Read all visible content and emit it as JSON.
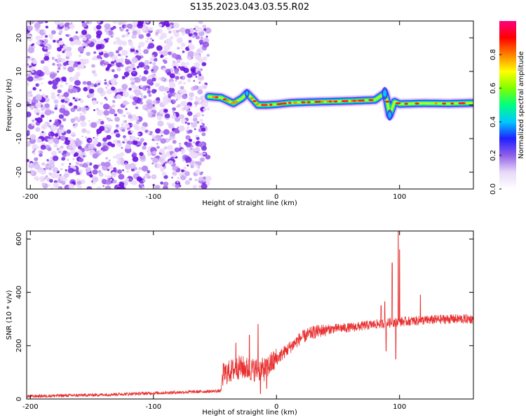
{
  "figure": {
    "title": "S135.2023.043.03.55.R02"
  },
  "chart_data": [
    {
      "type": "heatmap",
      "xlabel": "Height of straight line (km)",
      "ylabel": "Frequency (Hz)",
      "xlim": [
        -203,
        160
      ],
      "ylim": [
        -25,
        25
      ],
      "xticks": [
        -200,
        -100,
        0,
        100
      ],
      "yticks": [
        -20,
        -10,
        0,
        10,
        20
      ],
      "grid": false,
      "noise_region_x": [
        -203,
        -55
      ],
      "ridge": {
        "x": [
          -55,
          -45,
          -35,
          -28,
          -24,
          -20,
          -15,
          -8,
          0,
          10,
          20,
          40,
          60,
          80,
          88,
          90,
          92,
          96,
          100,
          120,
          140,
          160
        ],
        "freq": [
          2.5,
          2.2,
          0.5,
          2.0,
          3.5,
          2.0,
          0.0,
          0.0,
          0.2,
          0.6,
          0.8,
          1.0,
          1.2,
          1.5,
          3.5,
          1.0,
          -3.0,
          1.0,
          0.3,
          0.5,
          0.4,
          0.6
        ]
      },
      "colorbar": {
        "label": "Normalized spectral amplitude",
        "range": [
          0,
          1
        ],
        "ticks": [
          "0.0",
          "0.2",
          "0.4",
          "0.6",
          "0.8"
        ],
        "colors": [
          "#ffffff",
          "#e8d8f8",
          "#9060e8",
          "#2020ff",
          "#00c8ff",
          "#00ff80",
          "#80ff00",
          "#ffff00",
          "#ff8000",
          "#ff0000",
          "#ff0080"
        ]
      }
    },
    {
      "type": "line",
      "xlabel": "Height of straight line (km)",
      "ylabel": "SNR (10 * v/v)",
      "xlim": [
        -203,
        160
      ],
      "ylim": [
        0,
        630
      ],
      "xticks": [
        -200,
        -100,
        0,
        100
      ],
      "yticks": [
        0,
        200,
        400,
        600
      ],
      "grid": false,
      "color": "#e83030",
      "trend": {
        "x": [
          -203,
          -150,
          -100,
          -60,
          -45,
          -44,
          -30,
          -20,
          -10,
          0,
          10,
          20,
          30,
          40,
          50,
          60,
          80,
          100,
          120,
          140,
          160
        ],
        "y": [
          10,
          15,
          22,
          28,
          30,
          90,
          120,
          110,
          110,
          150,
          190,
          230,
          250,
          260,
          265,
          268,
          280,
          290,
          295,
          300,
          300
        ]
      },
      "spikes": [
        {
          "x": -33,
          "y": 210
        },
        {
          "x": -22,
          "y": 240
        },
        {
          "x": -15,
          "y": 280
        },
        {
          "x": 85,
          "y": 350
        },
        {
          "x": 88,
          "y": 365
        },
        {
          "x": 94,
          "y": 510
        },
        {
          "x": 99,
          "y": 630
        },
        {
          "x": 100,
          "y": 560
        },
        {
          "x": 117,
          "y": 390
        }
      ],
      "dips": [
        {
          "x": -13,
          "y": 20
        },
        {
          "x": -8,
          "y": 40
        },
        {
          "x": 97,
          "y": 150
        },
        {
          "x": 89,
          "y": 180
        }
      ]
    }
  ]
}
